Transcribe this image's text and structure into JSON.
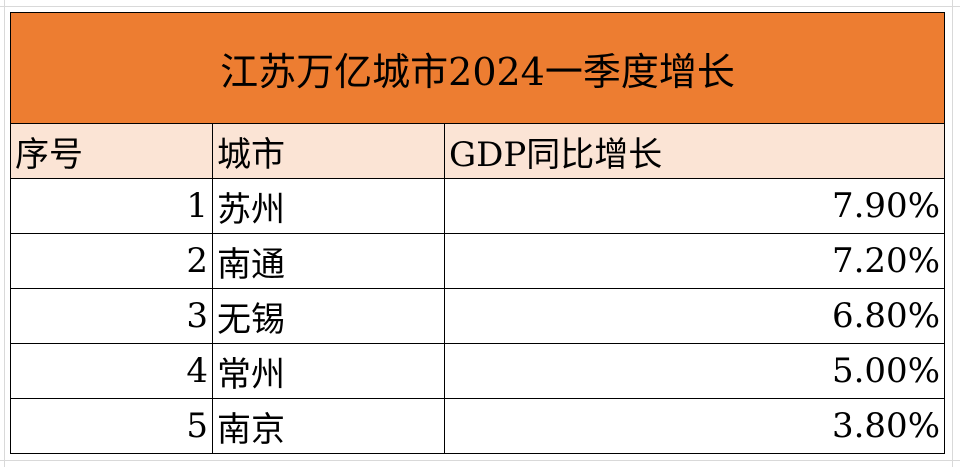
{
  "table": {
    "title": "江苏万亿城市2024一季度增长",
    "headers": [
      "序号",
      "城市",
      "GDP同比增长"
    ],
    "rows": [
      {
        "index": "1",
        "city": "苏州",
        "growth": "7.90%"
      },
      {
        "index": "2",
        "city": "南通",
        "growth": "7.20%"
      },
      {
        "index": "3",
        "city": "无锡",
        "growth": "6.80%"
      },
      {
        "index": "4",
        "city": "常州",
        "growth": "5.00%"
      },
      {
        "index": "5",
        "city": "南京",
        "growth": "3.80%"
      }
    ]
  },
  "colors": {
    "title_bg": "#ED7D31",
    "header_bg": "#FBE4D5"
  }
}
